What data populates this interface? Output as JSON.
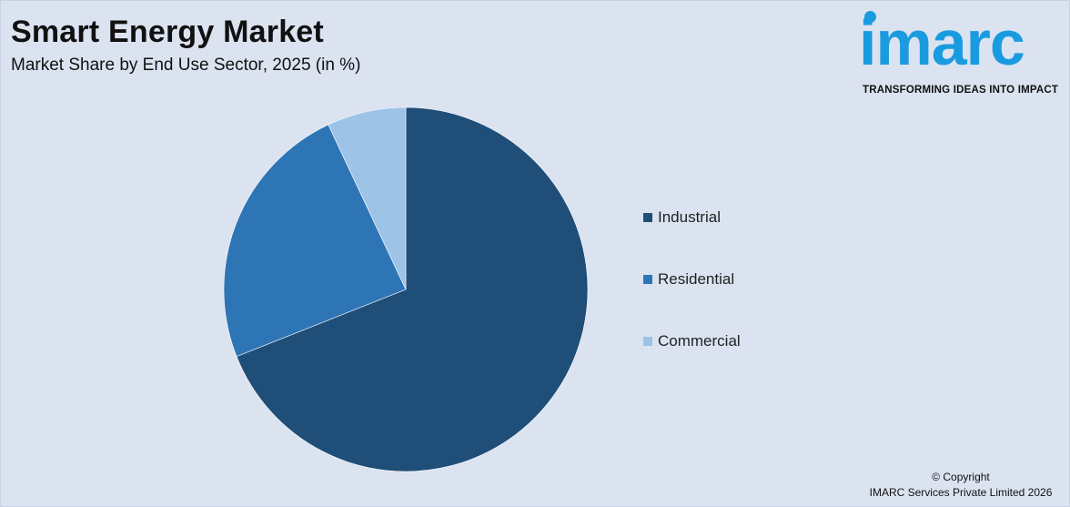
{
  "header": {
    "title": "Smart Energy Market",
    "subtitle": "Market Share by End Use Sector, 2025 (in %)"
  },
  "logo": {
    "word": "imarc",
    "tagline": "TRANSFORMING IDEAS INTO IMPACT",
    "color": "#1a9be0"
  },
  "footer": {
    "line1": "© Copyright",
    "line2": "IMARC Services Private Limited 2026"
  },
  "chart_data": {
    "type": "pie",
    "title": "Smart Energy Market",
    "subtitle": "Market Share by End Use Sector, 2025 (in %)",
    "legend_position": "right",
    "slices": [
      {
        "label": "Industrial",
        "value": 69,
        "color": "#1f4e79"
      },
      {
        "label": "Residential",
        "value": 24,
        "color": "#2e75b6"
      },
      {
        "label": "Commercial",
        "value": 7,
        "color": "#9dc3e6"
      }
    ]
  }
}
